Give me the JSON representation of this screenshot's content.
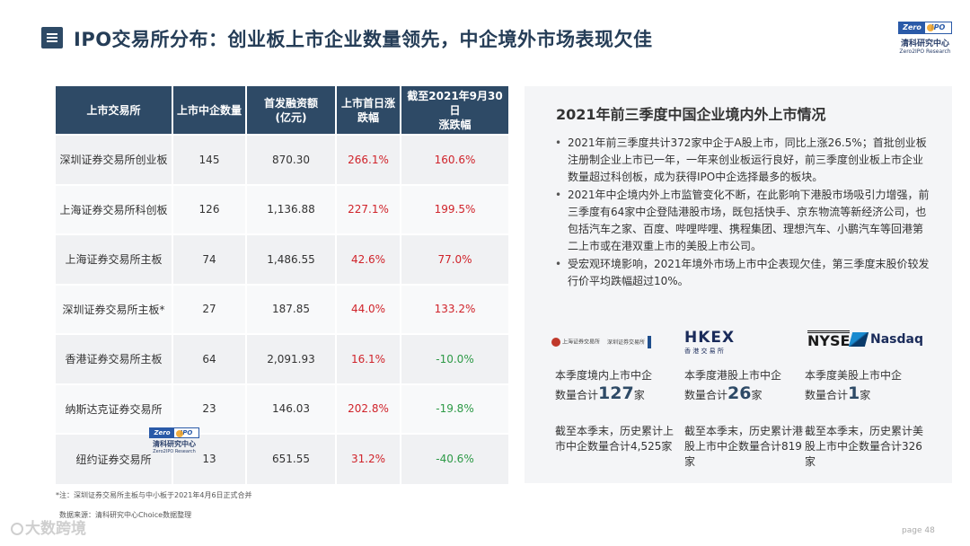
{
  "header": {
    "title": "IPO交易所分布：创业板上市企业数量领先，中企境外市场表现欠佳",
    "logo": {
      "badge_left": "Zero",
      "badge_right": "IPO",
      "cn": "清科研究中心",
      "en": "Zero2IPO Research"
    }
  },
  "table": {
    "headers": [
      "上市交易所",
      "上市中企数量",
      "首发融资额\n(亿元)",
      "上市首日涨\n跌幅",
      "截至2021年9月30日\n涨跌幅"
    ],
    "rows": [
      [
        "深圳证券交易所创业板",
        "145",
        "870.30",
        "266.1%",
        "160.6%"
      ],
      [
        "上海证券交易所科创板",
        "126",
        "1,136.88",
        "227.1%",
        "199.5%"
      ],
      [
        "上海证券交易所主板",
        "74",
        "1,486.55",
        "42.6%",
        "77.0%"
      ],
      [
        "深圳证券交易所主板*",
        "27",
        "187.85",
        "44.0%",
        "133.2%"
      ],
      [
        "香港证券交易所主板",
        "64",
        "2,091.93",
        "16.1%",
        "-10.0%"
      ],
      [
        "纳斯达克证券交易所",
        "23",
        "146.03",
        "202.8%",
        "-19.8%"
      ],
      [
        "纽约证券交易所",
        "13",
        "651.55",
        "31.2%",
        "-40.6%"
      ]
    ],
    "colors": {
      "header_bg": "#2e4a66",
      "positive": "#d0232a",
      "negative": "#2e9a47"
    }
  },
  "note": "*注：深圳证券交易所主板与中小板于2021年4月6日正式合并",
  "source": "数据来源：清科研究中心Choice数据整理",
  "brand_mark": "大数跨境",
  "page_label": "page  48",
  "panel": {
    "title": "2021年前三季度中国企业境内外上市情况",
    "bullets": [
      "2021年前三季度共计372家中企于A股上市，同比上涨26.5%；首批创业板注册制企业上市已一年，一年来创业板运行良好，前三季度创业板上市企业数量超过科创板，成为获得IPO中企选择最多的板块。",
      "2021年中企境内外上市监管变化不断，在此影响下港股市场吸引力增强，前三季度有64家中企登陆港股市场，既包括快手、京东物流等新经济公司，也包括汽车之家、百度、哔哩哔哩、携程集团、理想汽车、小鹏汽车等回港第二上市或在港双重上市的美股上市公司。",
      "受宏观环境影响，2021年境外市场上市中企表现欠佳，第三季度末股价较发行价平均跌幅超过10%。"
    ],
    "logos": {
      "szse_text": "上海证券交易所",
      "szse_text2": "深圳证券交易所",
      "hkex": "HKEX",
      "hkex_cn": "香 港 交 易 所",
      "nyse": "NYSE",
      "nasdaq": "Nasdaq"
    },
    "stats": [
      {
        "label": "本季度境内上市中企",
        "prefix": "数量合计",
        "num": "127",
        "suffix": "家",
        "cum": "截至本季末，历史累计上市中企数量合计4,525家"
      },
      {
        "label": "本季度港股上市中企",
        "prefix": "数量合计",
        "num": "26",
        "suffix": "家",
        "cum": "截至本季末，历史累计港股上市中企数量合计819家"
      },
      {
        "label": "本季度美股上市中企",
        "prefix": "数量合计",
        "num": "1",
        "suffix": "家",
        "cum": "截至本季末，历史累计美股上市中企数量合计326家"
      }
    ]
  }
}
